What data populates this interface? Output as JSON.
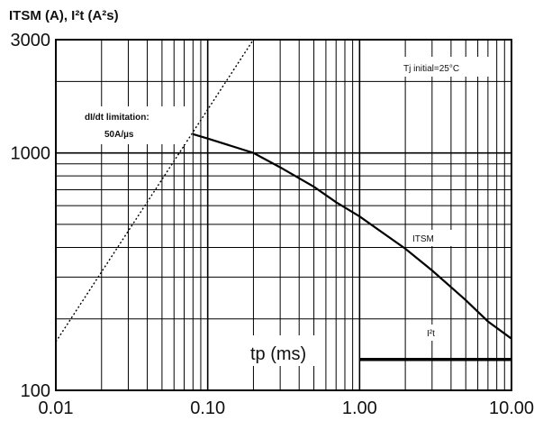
{
  "chart_data": {
    "type": "line",
    "title": "",
    "ylabel": "ITSM (A), I²t (A²s)",
    "xlabel": "tp (ms)",
    "x_scale": "log",
    "y_scale": "log",
    "xlim": [
      0.01,
      10
    ],
    "ylim": [
      100,
      3000
    ],
    "x_ticks": [
      "0.01",
      "0.10",
      "1.00",
      "10.00"
    ],
    "y_ticks": [
      "100",
      "1000",
      "3000"
    ],
    "grid": true,
    "legend": "none",
    "annotations": {
      "condition": "Tj initial=25°C",
      "didt_line1": "dI/dt limitation:",
      "didt_line2": "50A/µs"
    },
    "series": [
      {
        "name": "ITSM",
        "style": "solid",
        "x": [
          0.08,
          0.1,
          0.2,
          0.3,
          0.5,
          0.7,
          1.0,
          2.0,
          3.0,
          5.0,
          7.0,
          10.0
        ],
        "y": [
          1200,
          1150,
          1000,
          870,
          720,
          620,
          540,
          395,
          320,
          240,
          195,
          165
        ]
      },
      {
        "name": "I²t",
        "style": "thick",
        "x": [
          1.0,
          10.0
        ],
        "y": [
          135,
          135
        ]
      },
      {
        "name": "",
        "style": "dotted",
        "x": [
          0.01,
          0.2
        ],
        "y": [
          160,
          3000
        ]
      }
    ]
  }
}
